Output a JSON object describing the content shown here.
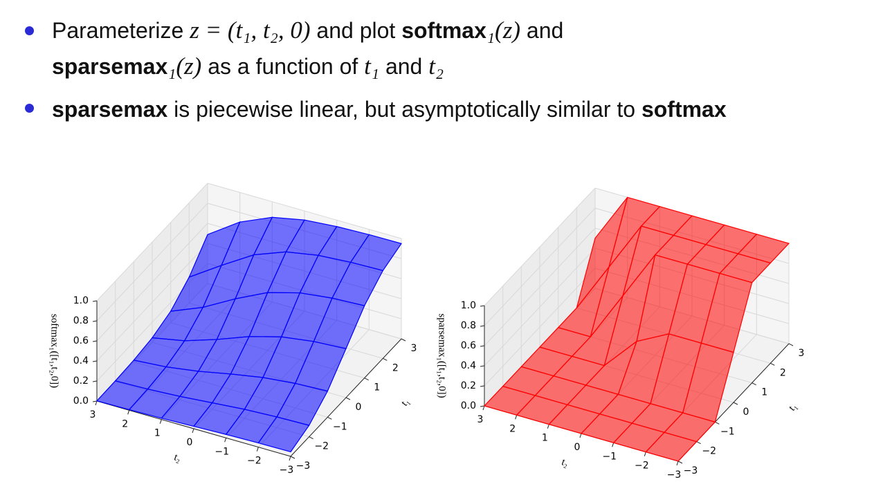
{
  "slide": {
    "bullets": [
      [
        "Parameterize ",
        "z = (t₁, t₂, 0)",
        " and plot ",
        "softmax",
        "₁(z)",
        " and ",
        "sparsemax",
        "₁(z)",
        " as a function of ",
        "t₁",
        " and ",
        "t₂"
      ],
      [
        "sparsemax",
        " is piecewise linear, but asymptotically similar to ",
        "softmax"
      ]
    ]
  },
  "chart_data": [
    {
      "type": "surface",
      "zlabel": "softmax₁([t₁,t₂,0])",
      "xlabel": "t₁",
      "ylabel": "t₂",
      "color": "#0000ff",
      "x": [
        -3,
        -2,
        -1,
        0,
        1,
        2,
        3
      ],
      "y": [
        -3,
        -2,
        -1,
        0,
        1,
        2,
        3
      ],
      "z": [
        [
          0.045,
          0.114,
          0.26,
          0.488,
          0.721,
          0.876,
          0.95
        ],
        [
          0.042,
          0.106,
          0.245,
          0.468,
          0.705,
          0.867,
          0.947
        ],
        [
          0.035,
          0.09,
          0.212,
          0.422,
          0.665,
          0.844,
          0.936
        ],
        [
          0.024,
          0.063,
          0.155,
          0.333,
          0.576,
          0.787,
          0.909
        ],
        [
          0.013,
          0.035,
          0.09,
          0.212,
          0.422,
          0.665,
          0.844
        ],
        [
          0.006,
          0.016,
          0.042,
          0.107,
          0.245,
          0.468,
          0.705
        ],
        [
          0.002,
          0.006,
          0.017,
          0.045,
          0.114,
          0.259,
          0.488
        ]
      ],
      "xlim": [
        -3,
        3
      ],
      "ylim": [
        -3,
        3
      ],
      "zlim": [
        0,
        1
      ],
      "xticks": [
        {
          "value": -3,
          "label": "−3"
        },
        {
          "value": -2,
          "label": "−2"
        },
        {
          "value": -1,
          "label": "−1"
        },
        0,
        1,
        2,
        3
      ],
      "yticks": [
        {
          "value": -3,
          "label": "−3"
        },
        {
          "value": -2,
          "label": "−2"
        },
        {
          "value": -1,
          "label": "−1"
        },
        0,
        1,
        2,
        3
      ],
      "zticks": [
        {
          "value": 0,
          "label": "0.0"
        },
        0.2,
        0.4,
        0.6,
        0.8,
        {
          "value": 1,
          "label": "1.0"
        }
      ]
    },
    {
      "type": "surface",
      "zlabel": "sparsemax₁([t₁,t₂,0])",
      "xlabel": "t₁",
      "ylabel": "t₂",
      "color": "#ff0000",
      "x": [
        -3,
        -2,
        -1,
        0,
        1,
        2,
        3
      ],
      "y": [
        -3,
        -2,
        -1,
        0,
        1,
        2,
        3
      ],
      "z": [
        [
          0,
          0,
          0,
          0.5,
          1,
          1,
          1
        ],
        [
          0,
          0,
          0,
          0.5,
          1,
          1,
          1
        ],
        [
          0,
          0,
          0,
          0.5,
          1,
          1,
          1
        ],
        [
          0,
          0,
          0,
          0.333,
          1,
          1,
          1
        ],
        [
          0,
          0,
          0,
          0,
          0.5,
          1,
          1
        ],
        [
          0,
          0,
          0,
          0,
          0,
          0.5,
          1
        ],
        [
          0,
          0,
          0,
          0,
          0,
          0,
          0.5
        ]
      ],
      "xlim": [
        -3,
        3
      ],
      "ylim": [
        -3,
        3
      ],
      "zlim": [
        0,
        1
      ],
      "xticks": [
        {
          "value": -3,
          "label": "−3"
        },
        {
          "value": -2,
          "label": "−2"
        },
        {
          "value": -1,
          "label": "−1"
        },
        0,
        1,
        2,
        3
      ],
      "yticks": [
        {
          "value": -3,
          "label": "−3"
        },
        {
          "value": -2,
          "label": "−2"
        },
        {
          "value": -1,
          "label": "−1"
        },
        0,
        1,
        2,
        3
      ],
      "zticks": [
        {
          "value": 0,
          "label": "0.0"
        },
        0.2,
        0.4,
        0.6,
        0.8,
        {
          "value": 1,
          "label": "1.0"
        }
      ]
    }
  ]
}
